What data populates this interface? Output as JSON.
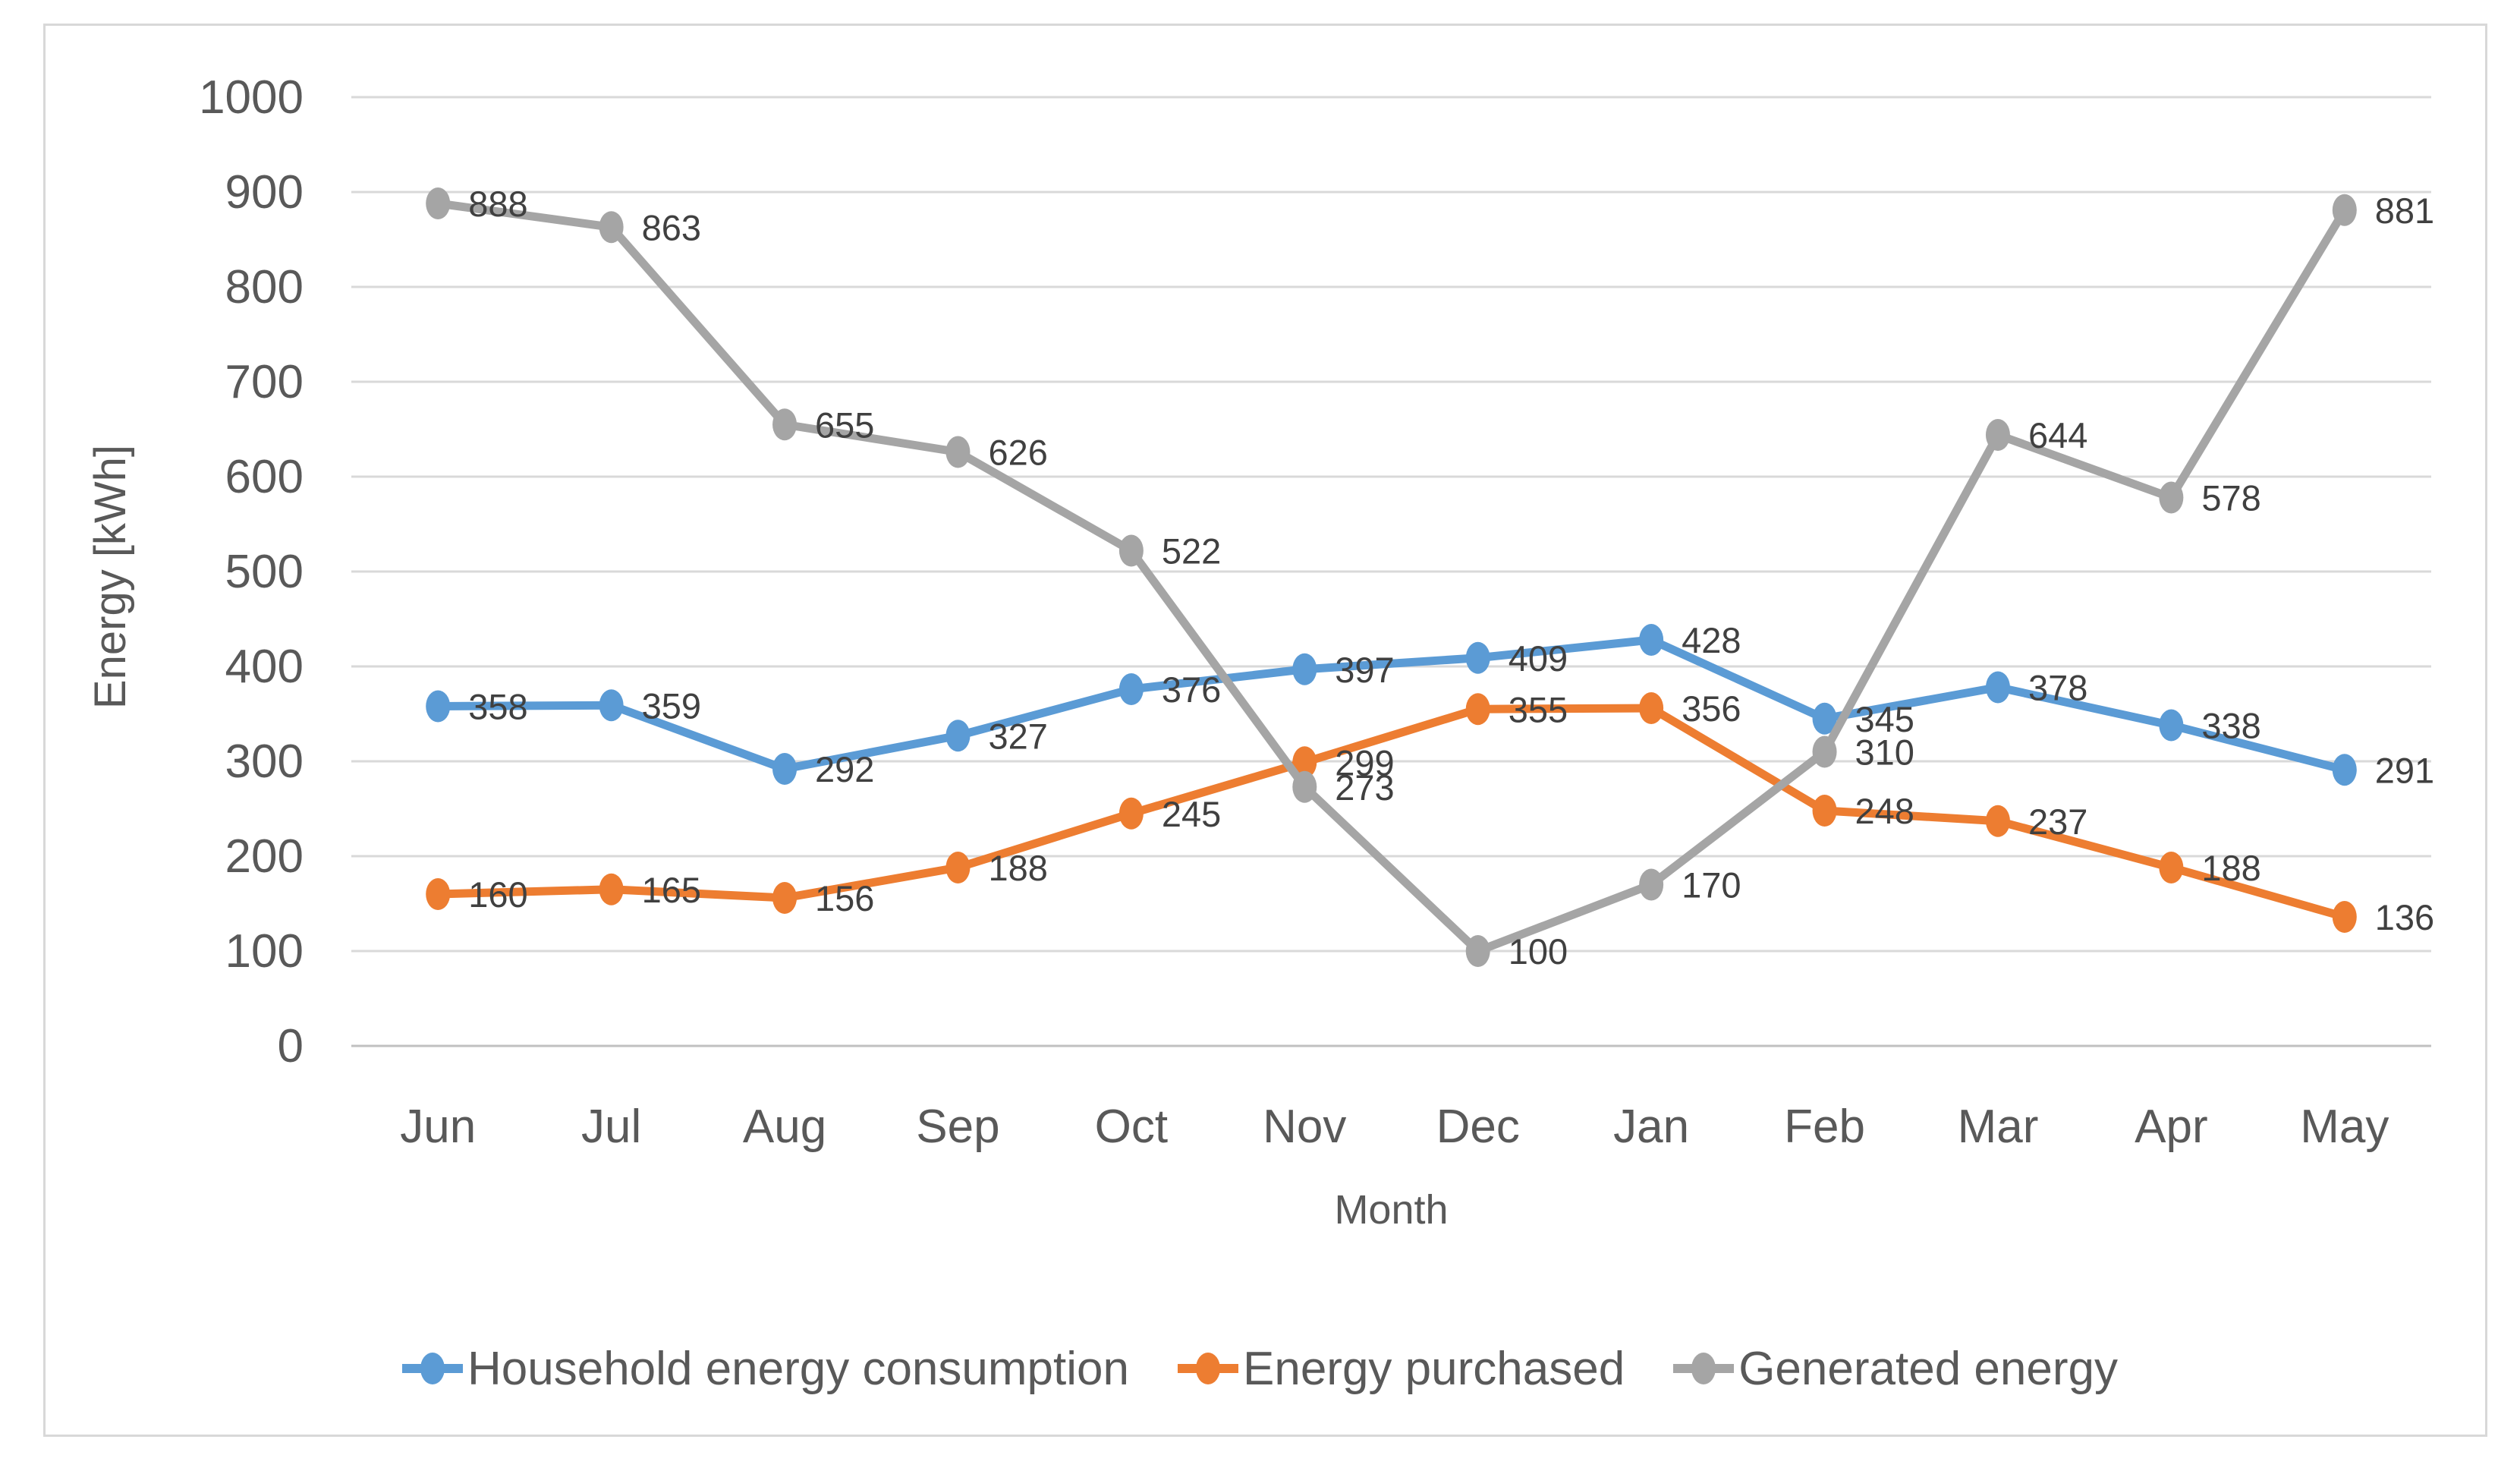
{
  "chart": {
    "y_axis": {
      "title": "Energy [kWh]",
      "min": 0,
      "max": 1000,
      "step": 100,
      "tick_labels": [
        "0",
        "100",
        "200",
        "300",
        "400",
        "500",
        "600",
        "700",
        "800",
        "900",
        "1000"
      ]
    },
    "x_axis": {
      "title": "Month"
    },
    "colors": {
      "gridline": "#d9d9d9",
      "axis_line": "#c0c0c0",
      "tick_text": "#595959",
      "data_label_text": "#404040",
      "frame_border": "#d8d8d8"
    }
  },
  "chart_data": {
    "type": "line",
    "categories": [
      "Jun",
      "Jul",
      "Aug",
      "Sep",
      "Oct",
      "Nov",
      "Dec",
      "Jan",
      "Feb",
      "Mar",
      "Apr",
      "May"
    ],
    "series": [
      {
        "name": "Household energy consumption",
        "color": "#5B9BD5",
        "values": [
          358,
          359,
          292,
          327,
          376,
          397,
          409,
          428,
          345,
          378,
          338,
          291
        ]
      },
      {
        "name": "Energy purchased",
        "color": "#ED7D31",
        "values": [
          160,
          165,
          156,
          188,
          245,
          299,
          355,
          356,
          248,
          237,
          188,
          136
        ]
      },
      {
        "name": "Generated energy",
        "color": "#A5A5A5",
        "values": [
          888,
          863,
          655,
          626,
          522,
          273,
          100,
          170,
          310,
          644,
          578,
          881
        ]
      }
    ],
    "title": "",
    "xlabel": "Month",
    "ylabel": "Energy [kWh]",
    "ylim": [
      0,
      1000
    ],
    "grid": true,
    "data_labels": true,
    "legend_position": "bottom"
  },
  "legend": {
    "items": [
      {
        "label": "Household energy consumption",
        "color": "#5B9BD5"
      },
      {
        "label": "Energy purchased",
        "color": "#ED7D31"
      },
      {
        "label": "Generated energy",
        "color": "#A5A5A5"
      }
    ]
  }
}
